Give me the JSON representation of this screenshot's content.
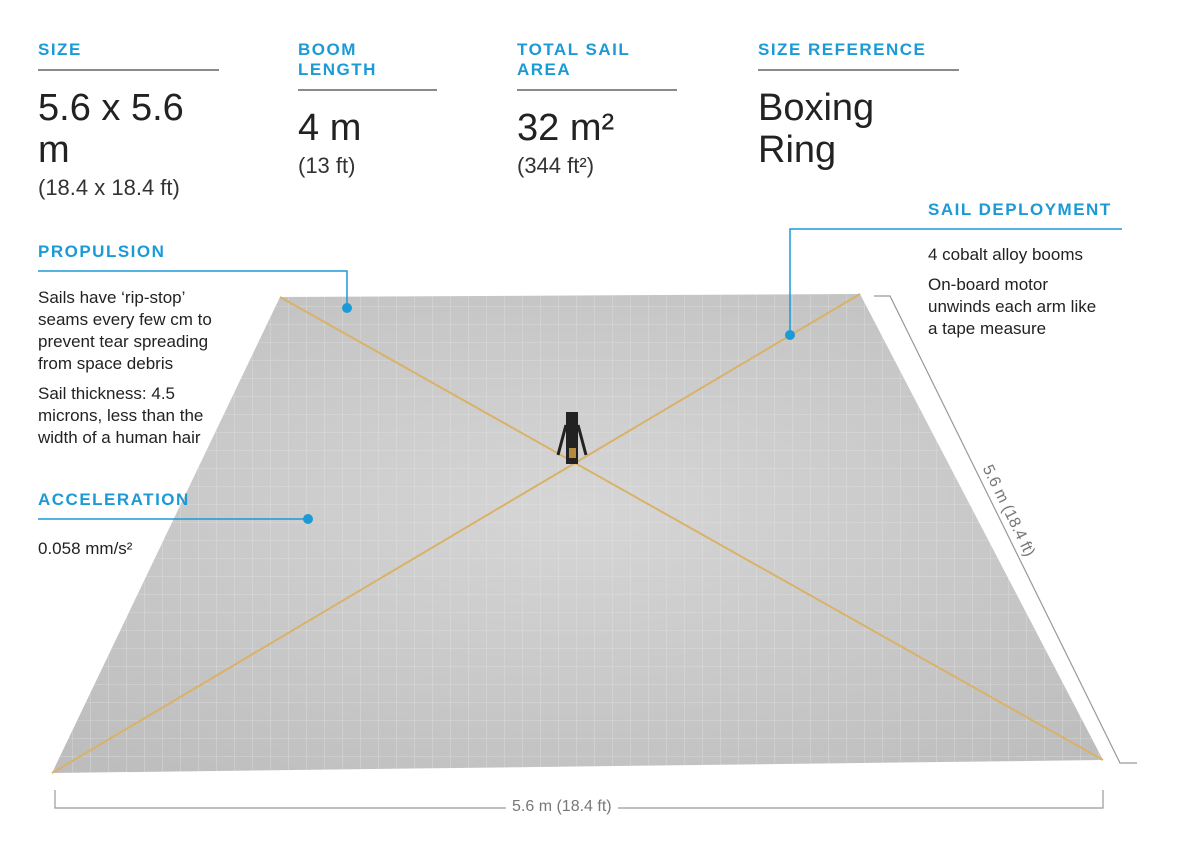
{
  "stats": [
    {
      "label": "SIZE",
      "value": "5.6 x 5.6 m",
      "sub": "(18.4 x 18.4 ft)"
    },
    {
      "label": "BOOM LENGTH",
      "value": "4 m",
      "sub": "(13 ft)"
    },
    {
      "label": "TOTAL SAIL AREA",
      "value": "32 m²",
      "sub": "(344 ft²)"
    },
    {
      "label": "SIZE REFERENCE",
      "value": "Boxing Ring",
      "sub": ""
    }
  ],
  "propulsion": {
    "title": "PROPULSION",
    "lines": [
      "Sails have ‘rip-stop’ seams every few cm to prevent tear spreading from space debris",
      "Sail thickness: 4.5 microns, less than the width of a human hair"
    ]
  },
  "acceleration": {
    "title": "ACCELERATION",
    "value": "0.058 mm/s²"
  },
  "deployment": {
    "title": "SAIL DEPLOYMENT",
    "lines": [
      "4 cobalt alloy booms",
      "On-board motor unwinds each arm like a tape measure"
    ]
  },
  "dimensions": {
    "side": "5.6 m (18.4 ft)",
    "bottom": "5.6 m (18.4 ft)"
  },
  "colors": {
    "accent": "#1b9ad6",
    "boom": "#d9b26a",
    "sail": "#cfcfcf"
  }
}
